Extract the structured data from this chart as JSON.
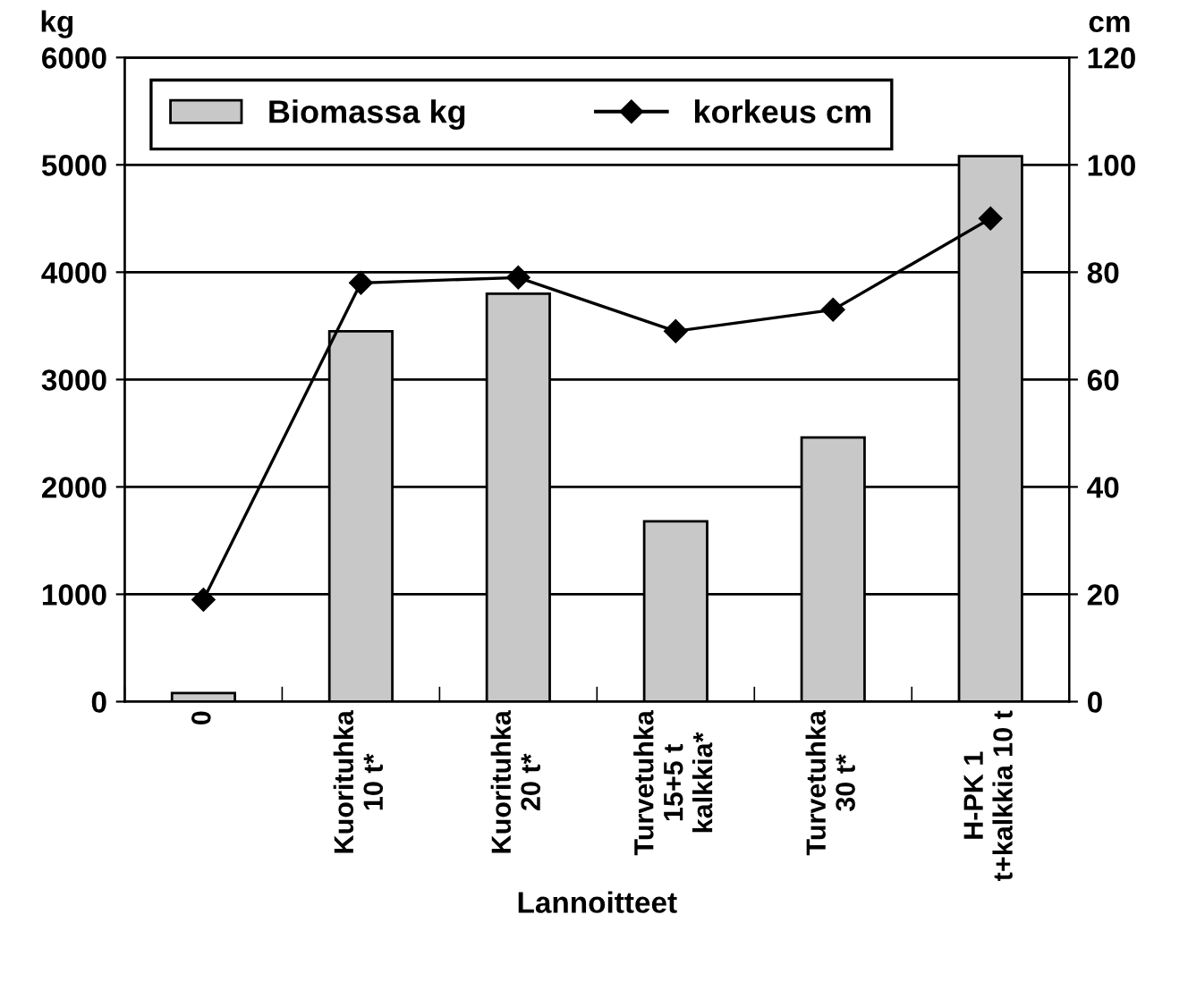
{
  "chart_data": {
    "type": "bar",
    "xlabel": "Lannoitteet",
    "ylabel": "kg",
    "y2label": "cm",
    "categories": [
      "0",
      "Kuorituhka\n10 t*",
      "Kuorituhka\n20 t*",
      "Turvetuhka\n15+5 t\nkalkkia*",
      "Turvetuhka\n30 t*",
      "H-PK 1\nt+kalkkia 10 t"
    ],
    "series": [
      {
        "name": "Biomassa kg",
        "color": "#c8c8c8",
        "values": [
          80,
          3450,
          3800,
          1680,
          2460,
          5080
        ]
      },
      {
        "name": "korkeus cm",
        "type": "line",
        "color": "#000000",
        "axis": "y2",
        "marker": "diamond",
        "values": [
          19,
          78,
          79,
          69,
          73,
          90
        ]
      }
    ],
    "ylim": [
      0,
      6000
    ],
    "yticks": [
      0,
      1000,
      2000,
      3000,
      4000,
      5000,
      6000
    ],
    "y2lim": [
      0,
      120
    ],
    "y2ticks": [
      0,
      20,
      40,
      60,
      80,
      100,
      120
    ],
    "grid": "y",
    "legend": "top"
  }
}
